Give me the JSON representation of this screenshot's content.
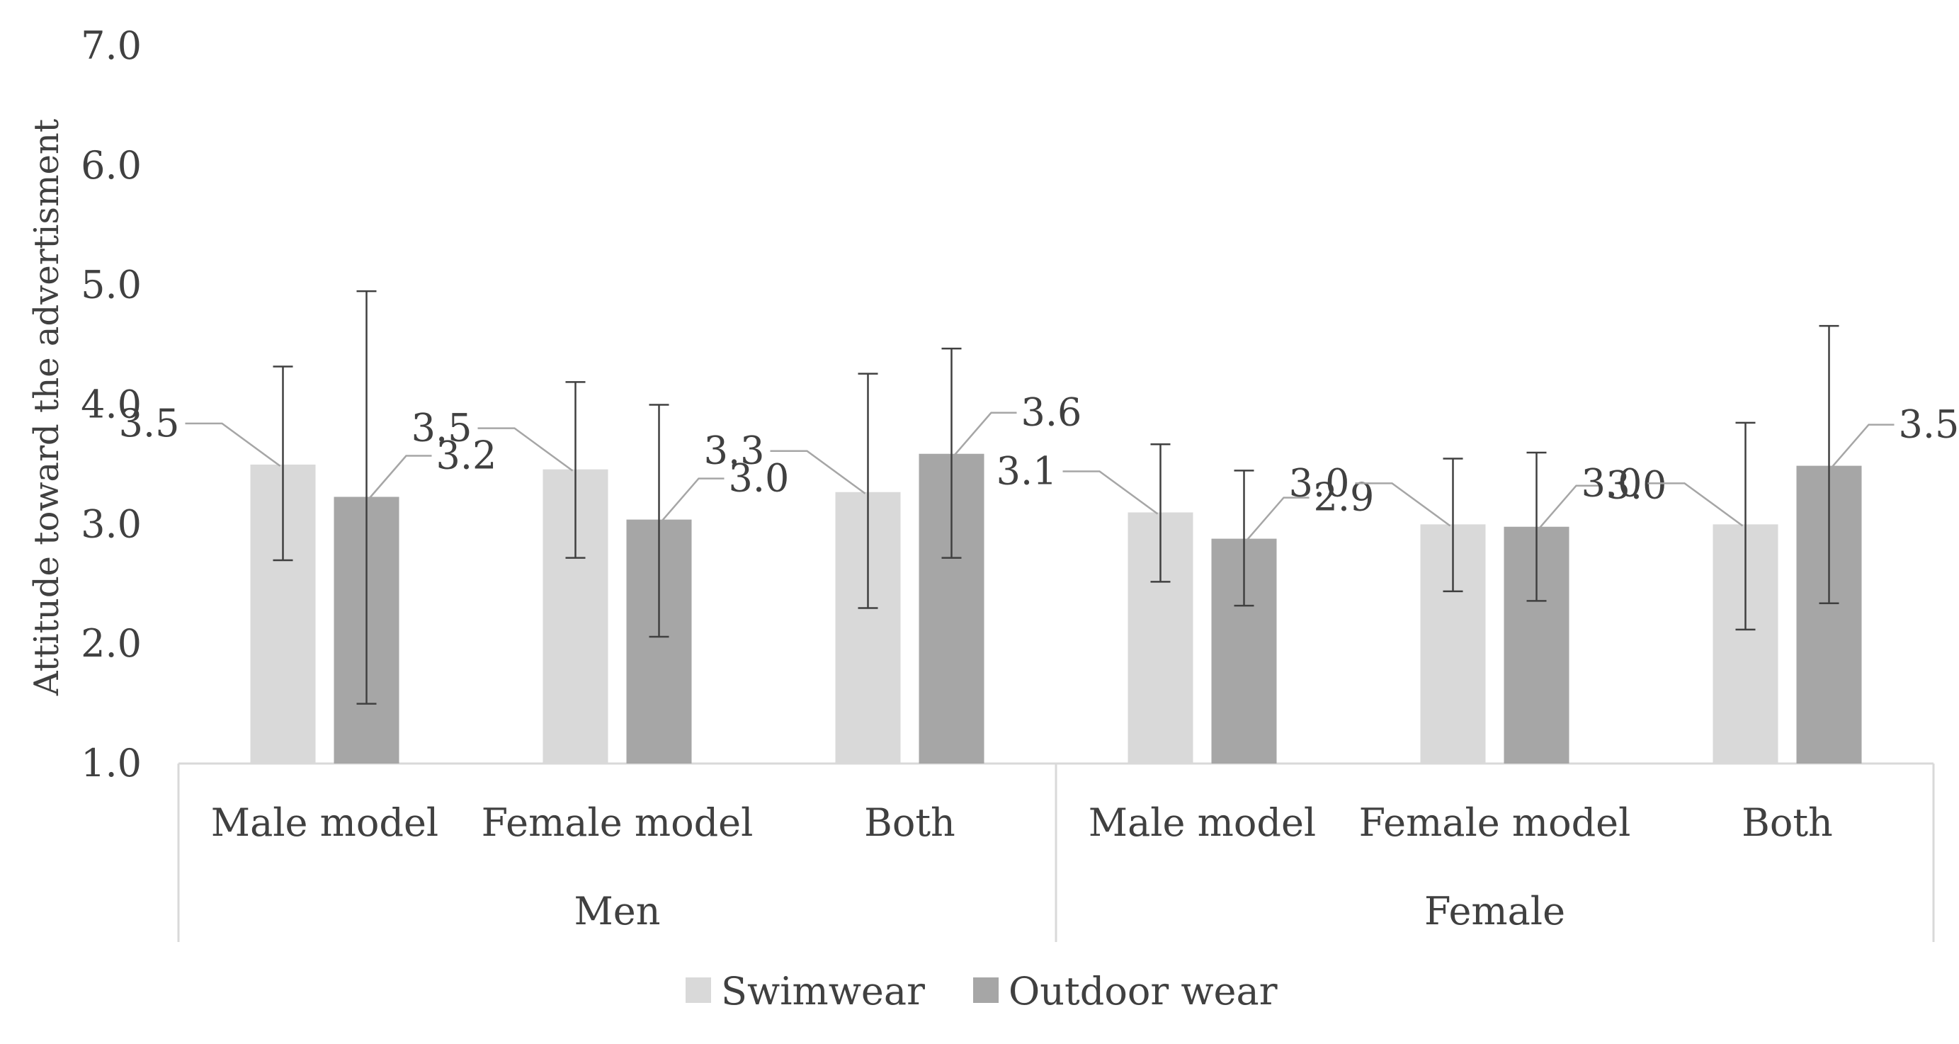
{
  "chart_data": {
    "type": "bar",
    "ylabel": "Attitude toward the advertisment",
    "ylim": [
      1.0,
      7.0
    ],
    "yticks": [
      "1.0",
      "2.0",
      "3.0",
      "4.0",
      "5.0",
      "6.0",
      "7.0"
    ],
    "groups": [
      {
        "label": "Men",
        "categories": [
          "Male model",
          "Female model",
          "Both"
        ]
      },
      {
        "label": "Female",
        "categories": [
          "Male model",
          "Female model",
          "Both"
        ]
      }
    ],
    "series": [
      {
        "name": "Swimwear",
        "color": "#d9d9d9",
        "values": [
          3.5,
          3.46,
          3.27,
          3.1,
          3.0,
          3.0
        ],
        "labels": [
          "3.5",
          "3.5",
          "3.3",
          "3.1",
          "3.0",
          "3.0"
        ],
        "err_low": [
          2.7,
          2.72,
          2.3,
          2.52,
          2.44,
          2.12
        ],
        "err_high": [
          4.32,
          4.19,
          4.26,
          3.67,
          3.55,
          3.85
        ]
      },
      {
        "name": "Outdoor wear",
        "color": "#a6a6a6",
        "values": [
          3.23,
          3.04,
          3.59,
          2.88,
          2.98,
          3.49
        ],
        "labels": [
          "3.2",
          "3.0",
          "3.6",
          "2.9",
          "3.0",
          "3.5"
        ],
        "err_low": [
          1.5,
          2.06,
          2.72,
          2.32,
          2.36,
          2.34
        ],
        "err_high": [
          4.95,
          4.0,
          4.47,
          3.45,
          3.6,
          4.66
        ]
      }
    ],
    "legend_position": "bottom",
    "grid": false
  }
}
